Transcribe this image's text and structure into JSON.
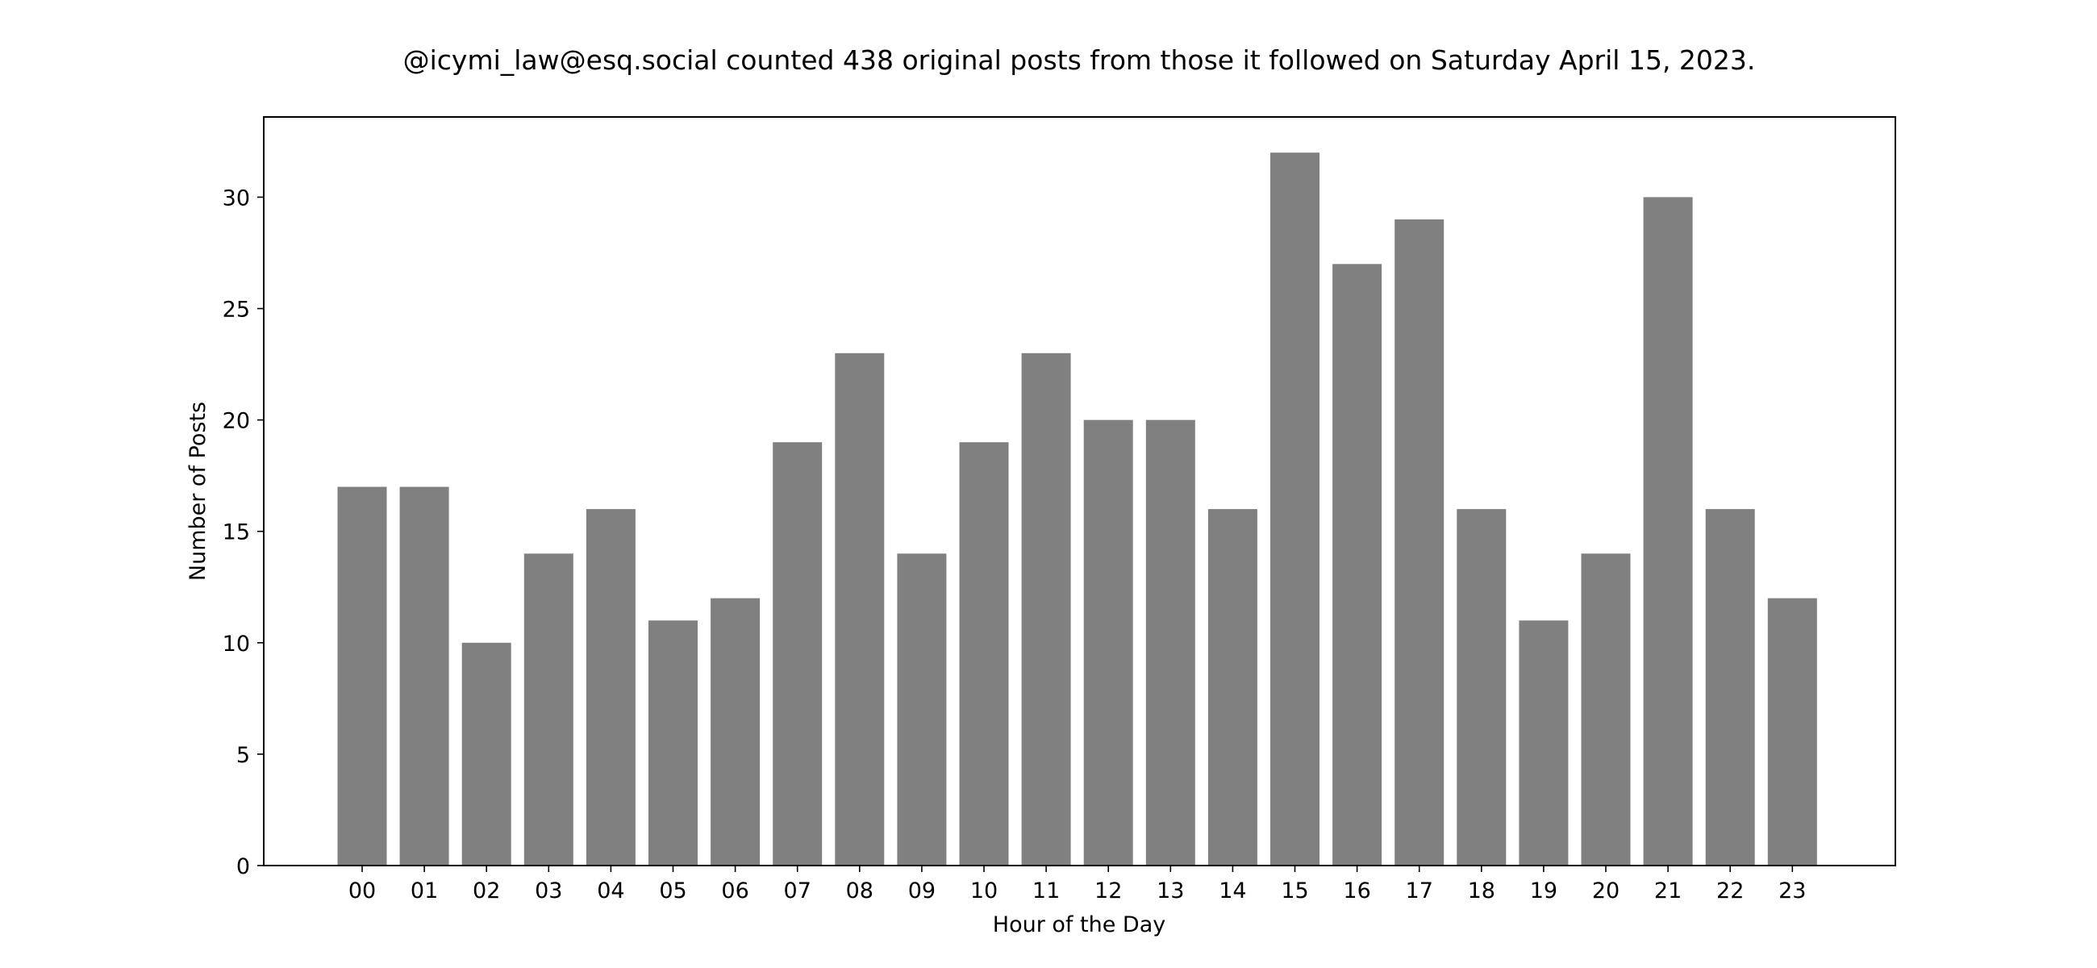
{
  "chart_data": {
    "type": "bar",
    "title": "@icymi_law@esq.social counted 438 original posts from those it followed on Saturday April 15, 2023.",
    "xlabel": "Hour of the Day",
    "ylabel": "Number of Posts",
    "categories": [
      "00",
      "01",
      "02",
      "03",
      "04",
      "05",
      "06",
      "07",
      "08",
      "09",
      "10",
      "11",
      "12",
      "13",
      "14",
      "15",
      "16",
      "17",
      "18",
      "19",
      "20",
      "21",
      "22",
      "23"
    ],
    "values": [
      17,
      17,
      10,
      14,
      16,
      11,
      12,
      19,
      23,
      14,
      19,
      23,
      20,
      20,
      16,
      32,
      27,
      29,
      16,
      11,
      14,
      30,
      16,
      12
    ],
    "ylim": [
      0,
      33.6
    ],
    "yticks": [
      0,
      5,
      10,
      15,
      20,
      25,
      30
    ],
    "bar_color": "#808080",
    "grid": false,
    "legend": "none"
  }
}
